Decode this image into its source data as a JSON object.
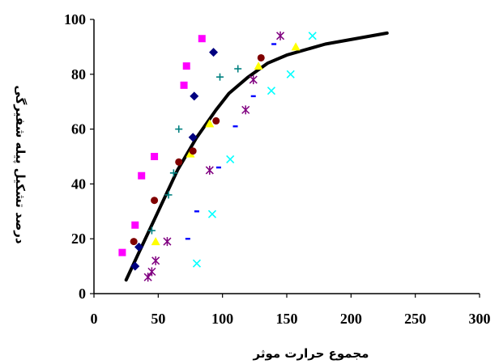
{
  "chart_data": {
    "type": "scatter",
    "title": "",
    "xlabel": "مجموع حرارت موثر",
    "ylabel": "درصد تشکیل پیله شفیرگی",
    "xlim": [
      0,
      300
    ],
    "ylim": [
      0,
      100
    ],
    "x_ticks": [
      0,
      50,
      100,
      150,
      200,
      250,
      300
    ],
    "y_ticks": [
      0,
      20,
      40,
      60,
      80,
      100
    ],
    "grid": false,
    "legend": "none",
    "series": [
      {
        "marker": "square",
        "color": "#ff00ff",
        "points": [
          [
            22,
            15
          ],
          [
            32,
            25
          ],
          [
            37,
            43
          ],
          [
            47,
            50
          ],
          [
            70,
            76
          ],
          [
            72,
            83
          ],
          [
            84,
            93
          ]
        ]
      },
      {
        "marker": "diamond",
        "color": "#000080",
        "points": [
          [
            32,
            10
          ],
          [
            35,
            17
          ],
          [
            77,
            57
          ],
          [
            78,
            72
          ],
          [
            93,
            88
          ]
        ]
      },
      {
        "marker": "triangle",
        "color": "#ffff00",
        "points": [
          [
            48,
            19
          ],
          [
            75,
            51
          ],
          [
            90,
            62
          ],
          [
            128,
            83
          ],
          [
            157,
            90
          ]
        ]
      },
      {
        "marker": "circle",
        "color": "#800000",
        "points": [
          [
            31,
            19
          ],
          [
            47,
            34
          ],
          [
            66,
            48
          ],
          [
            77,
            52
          ],
          [
            95,
            63
          ],
          [
            130,
            86
          ]
        ]
      },
      {
        "marker": "star",
        "color": "#800080",
        "points": [
          [
            42,
            6
          ],
          [
            45,
            8
          ],
          [
            48,
            12
          ],
          [
            57,
            19
          ],
          [
            90,
            45
          ],
          [
            118,
            67
          ],
          [
            124,
            78
          ],
          [
            145,
            94
          ]
        ]
      },
      {
        "marker": "plus",
        "color": "#008080",
        "points": [
          [
            45,
            23
          ],
          [
            58,
            36
          ],
          [
            62,
            44
          ],
          [
            66,
            60
          ],
          [
            98,
            79
          ],
          [
            112,
            82
          ]
        ]
      },
      {
        "marker": "dash",
        "color": "#0000ff",
        "points": [
          [
            73,
            20
          ],
          [
            80,
            30
          ],
          [
            97,
            46
          ],
          [
            110,
            61
          ],
          [
            124,
            72
          ],
          [
            140,
            91
          ]
        ]
      },
      {
        "marker": "x",
        "color": "#00ffff",
        "points": [
          [
            80,
            11
          ],
          [
            92,
            29
          ],
          [
            106,
            49
          ],
          [
            138,
            74
          ],
          [
            153,
            80
          ],
          [
            170,
            94
          ]
        ]
      }
    ],
    "trend_line": {
      "color": "#000000",
      "points": [
        [
          25,
          5
        ],
        [
          35,
          15
        ],
        [
          50,
          30
        ],
        [
          65,
          45
        ],
        [
          80,
          57
        ],
        [
          95,
          67
        ],
        [
          105,
          73
        ],
        [
          120,
          79
        ],
        [
          135,
          84
        ],
        [
          150,
          87
        ],
        [
          180,
          91
        ],
        [
          228,
          95
        ]
      ]
    }
  }
}
